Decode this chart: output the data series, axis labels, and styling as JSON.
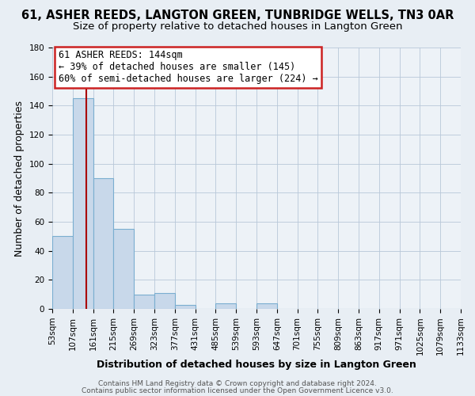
{
  "title": "61, ASHER REEDS, LANGTON GREEN, TUNBRIDGE WELLS, TN3 0AR",
  "subtitle": "Size of property relative to detached houses in Langton Green",
  "xlabel": "Distribution of detached houses by size in Langton Green",
  "ylabel": "Number of detached properties",
  "bin_edges": [
    53,
    107,
    161,
    215,
    269,
    323,
    377,
    431,
    485,
    539,
    593,
    647,
    701,
    755,
    809,
    863,
    917,
    971,
    1025,
    1079,
    1133
  ],
  "bin_labels": [
    "53sqm",
    "107sqm",
    "161sqm",
    "215sqm",
    "269sqm",
    "323sqm",
    "377sqm",
    "431sqm",
    "485sqm",
    "539sqm",
    "593sqm",
    "647sqm",
    "701sqm",
    "755sqm",
    "809sqm",
    "863sqm",
    "917sqm",
    "971sqm",
    "1025sqm",
    "1079sqm",
    "1133sqm"
  ],
  "bar_heights": [
    50,
    145,
    90,
    55,
    10,
    11,
    3,
    0,
    4,
    0,
    4,
    0,
    0,
    0,
    0,
    0,
    0,
    0,
    0,
    0
  ],
  "bar_color": "#c8d8ea",
  "bar_edge_color": "#7aaed0",
  "ylim": [
    0,
    180
  ],
  "yticks": [
    0,
    20,
    40,
    60,
    80,
    100,
    120,
    140,
    160,
    180
  ],
  "vline_color": "#aa0000",
  "vline_x": 144,
  "annotation_title": "61 ASHER REEDS: 144sqm",
  "annotation_line1": "← 39% of detached houses are smaller (145)",
  "annotation_line2": "60% of semi-detached houses are larger (224) →",
  "footer1": "Contains HM Land Registry data © Crown copyright and database right 2024.",
  "footer2": "Contains public sector information licensed under the Open Government Licence v3.0.",
  "bg_color": "#e8eef4",
  "plot_bg_color": "#edf2f7",
  "title_fontsize": 10.5,
  "subtitle_fontsize": 9.5,
  "axis_label_fontsize": 9,
  "tick_fontsize": 7.5,
  "footer_fontsize": 6.5,
  "annotation_fontsize": 8.5
}
